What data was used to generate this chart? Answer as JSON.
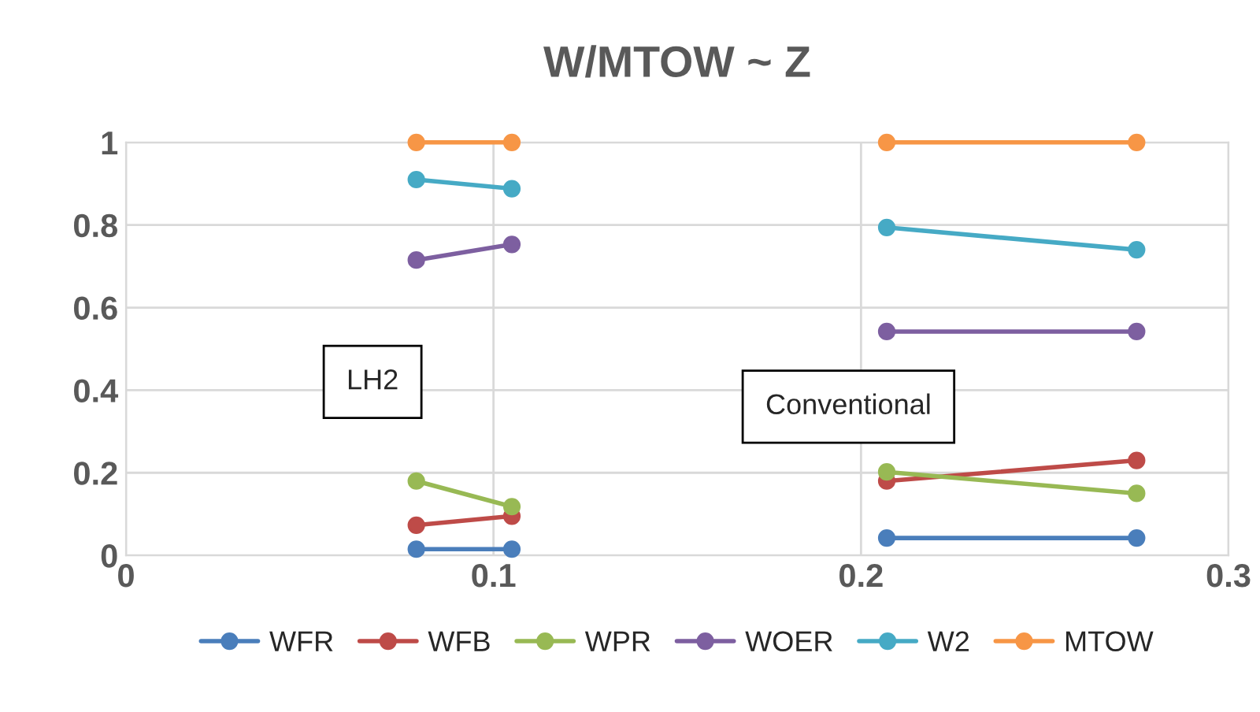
{
  "chart_data": {
    "type": "line",
    "title": "W/MTOW ~ Z",
    "x": [
      0.079,
      0.105,
      0.15,
      0.207,
      0.275
    ],
    "series": [
      {
        "name": "WFR",
        "color": "#4a7ebb",
        "values": [
          0.015,
          0.015,
          null,
          0.042,
          0.042
        ]
      },
      {
        "name": "WFB",
        "color": "#be4b48",
        "values": [
          0.073,
          0.095,
          null,
          0.18,
          0.23
        ]
      },
      {
        "name": "WPR",
        "color": "#98b954",
        "values": [
          0.18,
          0.118,
          null,
          0.202,
          0.15
        ]
      },
      {
        "name": "WOER",
        "color": "#7d5fa0",
        "values": [
          0.715,
          0.753,
          null,
          0.542,
          0.542
        ]
      },
      {
        "name": "W2",
        "color": "#46aac5",
        "values": [
          0.91,
          0.888,
          null,
          0.794,
          0.74
        ]
      },
      {
        "name": "MTOW",
        "color": "#f79646",
        "values": [
          1,
          1,
          null,
          1,
          1
        ]
      }
    ],
    "annotations": [
      "LH2",
      "Conventional"
    ],
    "xlim": [
      0,
      0.3
    ],
    "xticks": [
      0,
      0.1,
      0.2,
      0.3
    ],
    "ylim": [
      0,
      1
    ],
    "yticks": [
      0,
      0.2,
      0.4,
      0.6,
      0.8,
      1
    ],
    "grid": true,
    "legend": "bottom",
    "marker": "circle",
    "line_style": "solid"
  }
}
